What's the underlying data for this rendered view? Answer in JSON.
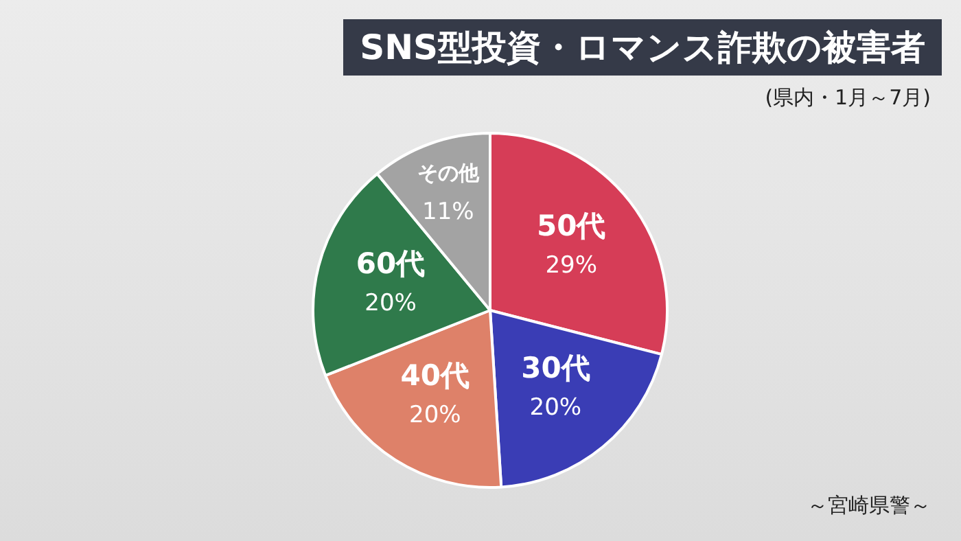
{
  "chart_data": {
    "type": "pie",
    "title": "SNS型投資・ロマンス詐欺の被害者",
    "subtitle": "(県内・1月～7月)",
    "annotations": [
      "～宮崎県警～"
    ],
    "categories": [
      "50代",
      "30代",
      "40代",
      "60代",
      "その他"
    ],
    "values": [
      29,
      20,
      20,
      20,
      11
    ],
    "value_labels": [
      "29%",
      "20%",
      "20%",
      "20%",
      "11%"
    ],
    "colors": [
      "#d63d57",
      "#3a3db5",
      "#de8169",
      "#2f7a4b",
      "#a3a3a3"
    ],
    "legend": false
  }
}
